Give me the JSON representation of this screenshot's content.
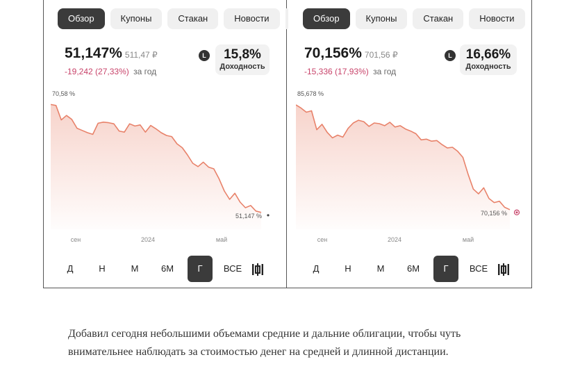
{
  "panels": [
    {
      "tabs": [
        "Обзор",
        "Купоны",
        "Стакан",
        "Новости"
      ],
      "active_tab": 0,
      "price_pct": "51,147%",
      "price_rub": "511,47 ₽",
      "change_abs": "-19,242",
      "change_pct": "(27,33%)",
      "change_period": "за год",
      "clock_glyph": "L",
      "yield_value": "15,8%",
      "yield_label": "Доходность",
      "periods": [
        "Д",
        "Н",
        "М",
        "6М",
        "Г",
        "ВСЕ"
      ],
      "active_period": 4,
      "chart_data": {
        "type": "area",
        "x_tick_labels": [
          "сен",
          "2024",
          "май"
        ],
        "start_label": "70,58 %",
        "end_label": "51,147 %",
        "color": "#e8826a",
        "ylim": [
          50,
          71.5
        ],
        "values": [
          70.58,
          70.4,
          67.8,
          68.6,
          67.9,
          66.3,
          65.9,
          65.5,
          65.2,
          67.2,
          67.4,
          67.3,
          67.1,
          65.8,
          65.6,
          67.1,
          66.7,
          66.9,
          65.6,
          66.8,
          66.2,
          65.5,
          65.0,
          64.8,
          63.5,
          62.8,
          61.5,
          60.0,
          59.4,
          60.2,
          59.3,
          59.0,
          57.2,
          55.0,
          53.5,
          54.6,
          53.0,
          52.0,
          52.4,
          51.4,
          51.147
        ]
      }
    },
    {
      "tabs": [
        "Обзор",
        "Купоны",
        "Стакан",
        "Новости"
      ],
      "active_tab": 0,
      "price_pct": "70,156%",
      "price_rub": "701,56 ₽",
      "change_abs": "-15,336",
      "change_pct": "(17,93%)",
      "change_period": "за год",
      "clock_glyph": "L",
      "yield_value": "16,66%",
      "yield_label": "Доходность",
      "periods": [
        "Д",
        "Н",
        "М",
        "6М",
        "Г",
        "ВСЕ"
      ],
      "active_period": 4,
      "chart_data": {
        "type": "area",
        "x_tick_labels": [
          "сен",
          "2024",
          "май"
        ],
        "start_label": "85,678 %",
        "end_label": "70,156 %",
        "color": "#e8826a",
        "ylim": [
          69,
          86.5
        ],
        "values": [
          85.678,
          85.2,
          84.6,
          84.8,
          82.0,
          82.8,
          81.6,
          80.8,
          81.2,
          80.9,
          82.2,
          83.0,
          83.4,
          83.2,
          82.5,
          83.0,
          82.9,
          82.6,
          83.1,
          82.4,
          82.6,
          82.1,
          81.8,
          81.4,
          80.5,
          80.6,
          80.3,
          80.4,
          79.8,
          79.3,
          79.4,
          78.8,
          77.9,
          75.4,
          73.2,
          72.5,
          73.4,
          71.8,
          71.2,
          71.4,
          70.5,
          70.156
        ]
      }
    }
  ],
  "caption": "Добавил сегодня небольшими объемами средние и дальние облигации, чтобы чуть внимательнее наблюдать за стоимостью денег на средней и длинной дистанции."
}
